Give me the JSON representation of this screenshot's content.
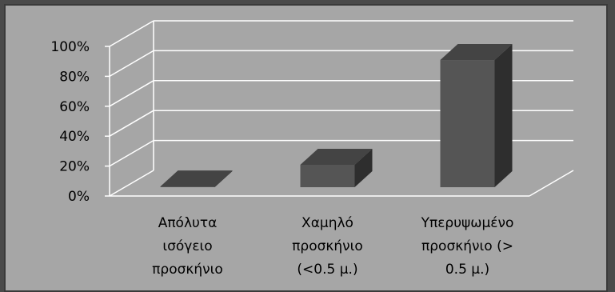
{
  "chart_data": {
    "type": "bar",
    "categories": [
      [
        "Απόλυτα",
        "ισόγειο",
        "προσκήνιο"
      ],
      [
        "Χαμηλό",
        "προσκήνιο",
        "(<0.5 μ.)"
      ],
      [
        "Υπερυψωμένο",
        "προσκήνιο (>",
        "0.5 μ.)"
      ]
    ],
    "values": [
      0.5,
      15,
      85
    ],
    "ylim": [
      0,
      100
    ],
    "yticks": [
      "0%",
      "20%",
      "40%",
      "60%",
      "80%",
      "100%"
    ],
    "grid": true,
    "title": "",
    "xlabel": "",
    "ylabel": ""
  },
  "colors": {
    "background": "#a6a6a6",
    "border": "#3a3a3a",
    "grid": "#ffffff",
    "bar_front": "#555555",
    "bar_top": "#444444",
    "bar_side": "#2e2e2e"
  }
}
